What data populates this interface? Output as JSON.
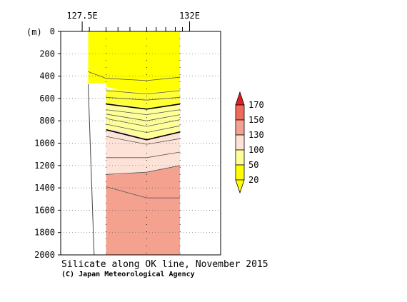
{
  "chart_data": {
    "type": "heatmap",
    "title": "Silicate along OK line, November 2015",
    "credit": "(C) Japan Meteorological Agency",
    "y_unit_label": "(m)",
    "x_tick_labels": [
      {
        "lon": 127.5,
        "label": "127.5E"
      },
      {
        "lon": 132.0,
        "label": "132E"
      }
    ],
    "xlim": [
      126.6,
      133.3
    ],
    "ylim": [
      0,
      2000
    ],
    "y_reversed": true,
    "y_ticks": [
      0,
      200,
      400,
      600,
      800,
      1000,
      1200,
      1400,
      1600,
      1800,
      2000
    ],
    "station_lons": [
      127.8,
      128.5,
      129.0,
      129.5,
      130.2,
      130.6,
      131.0,
      131.4,
      131.7
    ],
    "sections": [
      {
        "lon_min": 127.75,
        "lon_max": 128.5,
        "depth_max": 460
      },
      {
        "lon_min": 128.5,
        "lon_max": 131.6,
        "depth_max": 2000
      }
    ],
    "bottom_line": [
      {
        "lon": 127.75,
        "depth": 470
      },
      {
        "lon": 128.0,
        "depth": 2000
      }
    ],
    "bands": [
      {
        "range": "<=20",
        "color": "#ffff00",
        "top_lon": [
          127.75,
          129.0,
          130.2,
          131.6
        ],
        "top_depth": [
          0,
          0,
          0,
          0
        ],
        "bot_depth": [
          460,
          520,
          550,
          520
        ]
      },
      {
        "range": "20-50",
        "color": "#ffff33",
        "top_lon": [
          128.5,
          129.0,
          130.2,
          131.6
        ],
        "top_depth": [
          520,
          520,
          550,
          520
        ],
        "bot_depth": [
          650,
          650,
          690,
          650
        ]
      },
      {
        "range": "50-100",
        "color": "#ffff99",
        "top_lon": [
          128.5,
          129.0,
          130.2,
          131.6
        ],
        "top_depth": [
          650,
          650,
          690,
          650
        ],
        "bot_depth": [
          880,
          880,
          970,
          900
        ]
      },
      {
        "range": "100-130",
        "color": "#fde2d7",
        "top_lon": [
          128.5,
          129.0,
          130.2,
          131.6
        ],
        "top_depth": [
          880,
          880,
          970,
          900
        ],
        "bot_depth": [
          1280,
          1280,
          1260,
          1200
        ]
      },
      {
        "range": ">130",
        "color": "#f5a18f",
        "top_lon": [
          128.5,
          129.0,
          130.2,
          131.6
        ],
        "top_depth": [
          1280,
          1280,
          1260,
          1200
        ],
        "bot_depth": [
          2000,
          2000,
          2000,
          2000
        ]
      }
    ],
    "contours": [
      {
        "lon": [
          127.75,
          128.5,
          130.2,
          131.6
        ],
        "depth": [
          360,
          420,
          440,
          410
        ],
        "bold": false
      },
      {
        "lon": [
          128.5,
          130.2,
          131.6
        ],
        "depth": [
          530,
          560,
          530
        ],
        "bold": false
      },
      {
        "lon": [
          128.5,
          130.2,
          131.6
        ],
        "depth": [
          590,
          615,
          590
        ],
        "bold": false
      },
      {
        "lon": [
          128.5,
          130.2,
          131.6
        ],
        "depth": [
          650,
          695,
          650
        ],
        "bold": true
      },
      {
        "lon": [
          128.5,
          130.2,
          131.6
        ],
        "depth": [
          700,
          745,
          700
        ],
        "bold": false
      },
      {
        "lon": [
          128.5,
          130.2,
          131.6
        ],
        "depth": [
          740,
          800,
          745
        ],
        "bold": false
      },
      {
        "lon": [
          128.5,
          130.2,
          131.6
        ],
        "depth": [
          780,
          850,
          790
        ],
        "bold": false
      },
      {
        "lon": [
          128.5,
          130.2,
          131.6
        ],
        "depth": [
          830,
          905,
          845
        ],
        "bold": false
      },
      {
        "lon": [
          128.5,
          130.2,
          131.6
        ],
        "depth": [
          880,
          970,
          900
        ],
        "bold": true
      },
      {
        "lon": [
          128.5,
          130.2,
          131.6
        ],
        "depth": [
          940,
          1010,
          960
        ],
        "bold": false
      },
      {
        "lon": [
          128.5,
          130.2,
          131.6
        ],
        "depth": [
          1130,
          1130,
          1080
        ],
        "bold": false
      },
      {
        "lon": [
          128.5,
          130.2,
          131.6
        ],
        "depth": [
          1280,
          1260,
          1200
        ],
        "bold": false
      },
      {
        "lon": [
          128.5,
          130.2,
          131.6
        ],
        "depth": [
          1390,
          1490,
          1490
        ],
        "bold": false
      }
    ],
    "legend": {
      "levels": [
        "20",
        "50",
        "100",
        "130",
        "150",
        "170"
      ],
      "colors": [
        "#ffff00",
        "#ffff99",
        "#fde2d7",
        "#f5a18f",
        "#ee6b5c",
        "#e02020"
      ],
      "under_color": "#ffff00",
      "over_color": "#e02020"
    },
    "grid": "dotted"
  }
}
